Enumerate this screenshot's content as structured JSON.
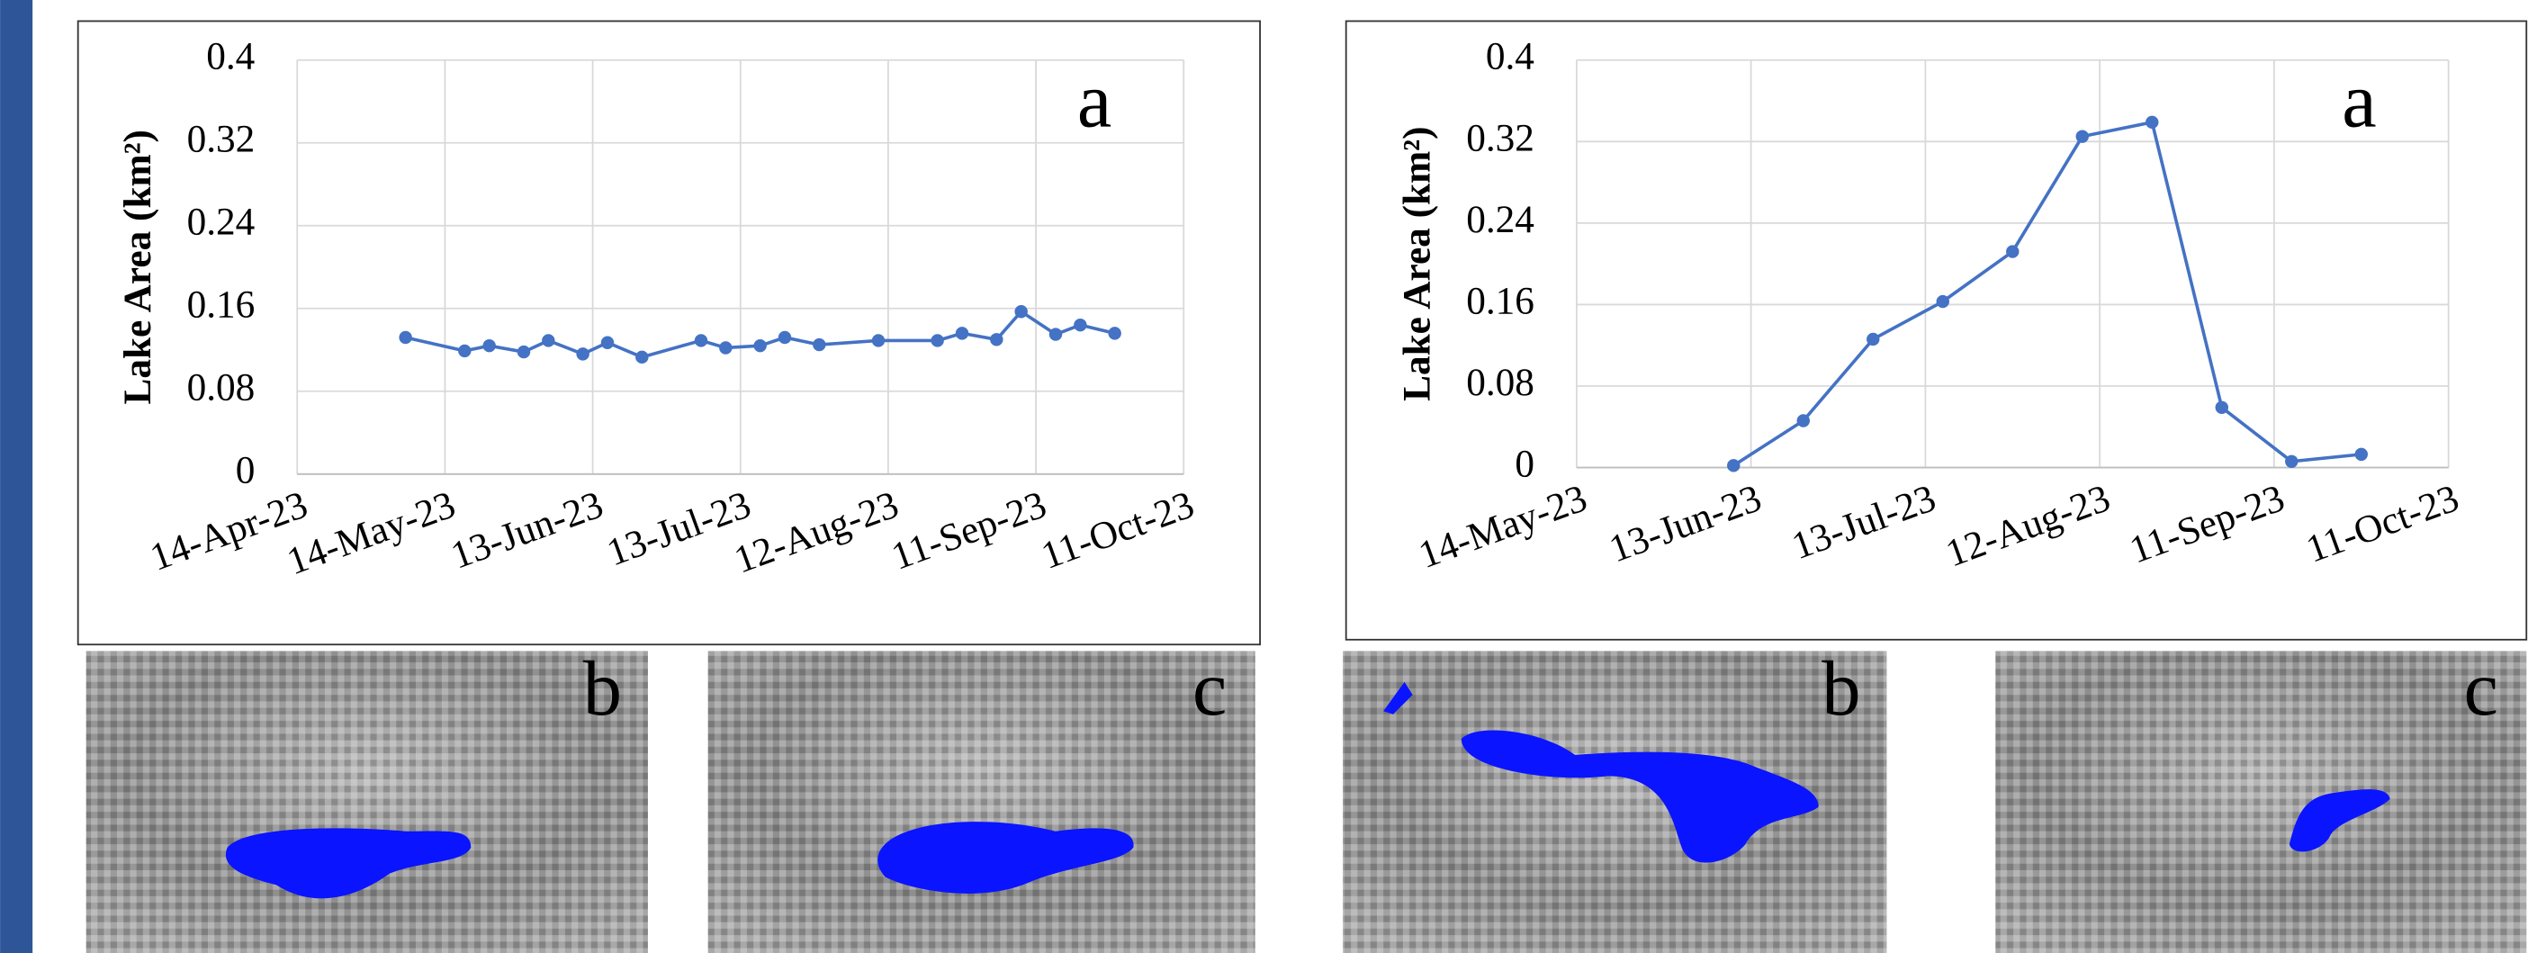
{
  "chart_data": [
    {
      "type": "line",
      "annotation": "a",
      "image_labels": [
        "b",
        "c"
      ],
      "y_label": "Lake Area (km²)",
      "xlim": [
        "2023-04-14",
        "2023-10-11"
      ],
      "xticks": [
        {
          "value": "2023-04-14",
          "label": "14-Apr-23"
        },
        {
          "value": "2023-05-14",
          "label": "14-May-23"
        },
        {
          "value": "2023-06-13",
          "label": "13-Jun-23"
        },
        {
          "value": "2023-07-13",
          "label": "13-Jul-23"
        },
        {
          "value": "2023-08-12",
          "label": "12-Aug-23"
        },
        {
          "value": "2023-09-11",
          "label": "11-Sep-23"
        },
        {
          "value": "2023-10-11",
          "label": "11-Oct-23"
        }
      ],
      "ylim": [
        0,
        0.4
      ],
      "yticks": [
        0,
        0.08,
        0.16,
        0.24,
        0.32,
        0.4
      ],
      "grid": true,
      "series": [
        {
          "color": "#4472c4",
          "x": [
            "2023-05-06",
            "2023-05-18",
            "2023-05-23",
            "2023-05-30",
            "2023-06-04",
            "2023-06-11",
            "2023-06-16",
            "2023-06-23",
            "2023-07-05",
            "2023-07-10",
            "2023-07-17",
            "2023-07-22",
            "2023-07-29",
            "2023-08-10",
            "2023-08-22",
            "2023-08-27",
            "2023-09-03",
            "2023-09-08",
            "2023-09-15",
            "2023-09-20",
            "2023-09-27"
          ],
          "values": [
            0.132,
            0.119,
            0.124,
            0.118,
            0.129,
            0.116,
            0.127,
            0.113,
            0.129,
            0.122,
            0.124,
            0.132,
            0.125,
            0.129,
            0.129,
            0.136,
            0.13,
            0.157,
            0.135,
            0.144,
            0.136
          ]
        }
      ]
    },
    {
      "type": "line",
      "annotation": "a",
      "image_labels": [
        "b",
        "c"
      ],
      "y_label": "Lake Area (km²)",
      "xlim": [
        "2023-05-14",
        "2023-10-11"
      ],
      "xticks": [
        {
          "value": "2023-05-14",
          "label": "14-May-23"
        },
        {
          "value": "2023-06-13",
          "label": "13-Jun-23"
        },
        {
          "value": "2023-07-13",
          "label": "13-Jul-23"
        },
        {
          "value": "2023-08-12",
          "label": "12-Aug-23"
        },
        {
          "value": "2023-09-11",
          "label": "11-Sep-23"
        },
        {
          "value": "2023-10-11",
          "label": "11-Oct-23"
        }
      ],
      "ylim": [
        0,
        0.4
      ],
      "yticks": [
        0,
        0.08,
        0.16,
        0.24,
        0.32,
        0.4
      ],
      "grid": true,
      "series": [
        {
          "color": "#4472c4",
          "x": [
            "2023-06-10",
            "2023-06-22",
            "2023-07-04",
            "2023-07-16",
            "2023-07-28",
            "2023-08-09",
            "2023-08-21",
            "2023-09-02",
            "2023-09-14",
            "2023-09-26"
          ],
          "values": [
            0.002,
            0.046,
            0.126,
            0.163,
            0.212,
            0.325,
            0.339,
            0.059,
            0.006,
            0.013
          ]
        }
      ]
    }
  ]
}
